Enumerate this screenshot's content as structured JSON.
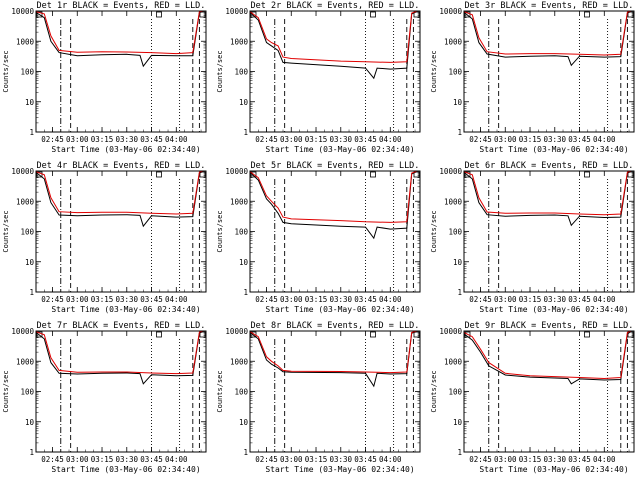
{
  "figure": {
    "common_x_label": "Start Time (03-May-06 02:34:40)",
    "common_y_label": "Counts/sec",
    "legend_text": "BLACK = Events, RED = LLD."
  },
  "chart_data": [
    {
      "type": "line",
      "title": "Det 1r BLACK = Events, RED = LLD.",
      "xlabel": "Start Time (03-May-06 02:34:40)",
      "ylabel": "Counts/sec",
      "y_scale": "log",
      "ylim": [
        1,
        10000
      ],
      "x_ticklabels": [
        "02:45",
        "03:00",
        "03:15",
        "03:30",
        "03:45",
        "04:00"
      ],
      "y_ticklabels": [
        "1",
        "10",
        "100",
        "1000",
        "10000"
      ],
      "series": [
        {
          "name": "Events",
          "color": "#000000",
          "x": [
            "02:35",
            "02:40",
            "02:44",
            "02:49",
            "03:00",
            "03:15",
            "03:30",
            "03:38",
            "03:40",
            "03:45",
            "04:00",
            "04:10",
            "04:14",
            "04:16"
          ],
          "y": [
            9000,
            6000,
            1000,
            420,
            330,
            360,
            370,
            340,
            150,
            340,
            330,
            330,
            9000,
            9500
          ]
        },
        {
          "name": "LLD",
          "color": "#e00000",
          "x": [
            "02:35",
            "02:40",
            "02:44",
            "02:49",
            "03:00",
            "03:15",
            "03:30",
            "03:45",
            "04:00",
            "04:10",
            "04:14",
            "04:16"
          ],
          "y": [
            9500,
            8000,
            1500,
            500,
            430,
            450,
            440,
            420,
            390,
            420,
            9500,
            9800
          ]
        }
      ]
    },
    {
      "type": "line",
      "title": "Det 2r BLACK = Events, RED = LLD.",
      "xlabel": "Start Time (03-May-06 02:34:40)",
      "ylabel": "Counts/sec",
      "y_scale": "log",
      "ylim": [
        1,
        10000
      ],
      "x_ticklabels": [
        "02:45",
        "03:00",
        "03:15",
        "03:30",
        "03:45",
        "04:00"
      ],
      "y_ticklabels": [
        "1",
        "10",
        "100",
        "1000",
        "10000"
      ],
      "series": [
        {
          "name": "Events",
          "color": "#000000",
          "x": [
            "02:35",
            "02:40",
            "02:45",
            "02:48",
            "02:52",
            "02:55",
            "03:00",
            "03:30",
            "03:45",
            "03:50",
            "03:52",
            "04:00",
            "04:10",
            "04:13",
            "04:16"
          ],
          "y": [
            9000,
            5000,
            900,
            700,
            500,
            200,
            190,
            150,
            130,
            60,
            130,
            120,
            130,
            8000,
            9500
          ]
        },
        {
          "name": "LLD",
          "color": "#e00000",
          "x": [
            "02:35",
            "02:40",
            "02:45",
            "02:48",
            "02:52",
            "02:55",
            "03:00",
            "03:30",
            "03:45",
            "04:00",
            "04:10",
            "04:13",
            "04:16"
          ],
          "y": [
            9500,
            6000,
            1200,
            900,
            700,
            300,
            270,
            220,
            210,
            200,
            210,
            8500,
            9800
          ]
        }
      ]
    },
    {
      "type": "line",
      "title": "Det 3r BLACK = Events, RED = LLD.",
      "xlabel": "Start Time (03-May-06 02:34:40)",
      "ylabel": "Counts/sec",
      "y_scale": "log",
      "ylim": [
        1,
        10000
      ],
      "x_ticklabels": [
        "02:45",
        "03:00",
        "03:15",
        "03:30",
        "03:45",
        "04:00"
      ],
      "y_ticklabels": [
        "1",
        "10",
        "100",
        "1000",
        "10000"
      ],
      "series": [
        {
          "name": "Events",
          "color": "#000000",
          "x": [
            "02:35",
            "02:40",
            "02:44",
            "02:49",
            "03:00",
            "03:15",
            "03:30",
            "03:38",
            "03:40",
            "03:45",
            "04:00",
            "04:10",
            "04:14",
            "04:16"
          ],
          "y": [
            9000,
            5500,
            900,
            380,
            300,
            320,
            330,
            310,
            160,
            320,
            300,
            310,
            8500,
            9500
          ]
        },
        {
          "name": "LLD",
          "color": "#e00000",
          "x": [
            "02:35",
            "02:40",
            "02:44",
            "02:49",
            "03:00",
            "03:15",
            "03:30",
            "03:45",
            "04:00",
            "04:10",
            "04:14",
            "04:16"
          ],
          "y": [
            9500,
            7500,
            1300,
            450,
            380,
            390,
            390,
            370,
            350,
            370,
            9200,
            9800
          ]
        }
      ]
    },
    {
      "type": "line",
      "title": "Det 4r BLACK = Events, RED = LLD.",
      "xlabel": "Start Time (03-May-06 02:34:40)",
      "ylabel": "Counts/sec",
      "y_scale": "log",
      "ylim": [
        1,
        10000
      ],
      "x_ticklabels": [
        "02:45",
        "03:00",
        "03:15",
        "03:30",
        "03:45",
        "04:00"
      ],
      "y_ticklabels": [
        "1",
        "10",
        "100",
        "1000",
        "10000"
      ],
      "series": [
        {
          "name": "Events",
          "color": "#000000",
          "x": [
            "02:35",
            "02:40",
            "02:44",
            "02:49",
            "03:00",
            "03:15",
            "03:30",
            "03:38",
            "03:40",
            "03:45",
            "04:00",
            "04:10",
            "04:14",
            "04:16"
          ],
          "y": [
            9000,
            5500,
            900,
            350,
            330,
            350,
            360,
            340,
            150,
            330,
            300,
            310,
            8500,
            9500
          ]
        },
        {
          "name": "LLD",
          "color": "#e00000",
          "x": [
            "02:35",
            "02:40",
            "02:44",
            "02:49",
            "03:00",
            "03:15",
            "03:30",
            "03:45",
            "04:00",
            "04:10",
            "04:14",
            "04:16"
          ],
          "y": [
            9500,
            7500,
            1300,
            450,
            420,
            430,
            430,
            400,
            380,
            400,
            9200,
            9800
          ]
        }
      ]
    },
    {
      "type": "line",
      "title": "Det 5r BLACK = Events, RED = LLD.",
      "xlabel": "Start Time (03-May-06 02:34:40)",
      "ylabel": "Counts/sec",
      "y_scale": "log",
      "ylim": [
        1,
        10000
      ],
      "x_ticklabels": [
        "02:45",
        "03:00",
        "03:15",
        "03:30",
        "03:45",
        "04:00"
      ],
      "y_ticklabels": [
        "1",
        "10",
        "100",
        "1000",
        "10000"
      ],
      "series": [
        {
          "name": "Events",
          "color": "#000000",
          "x": [
            "02:35",
            "02:40",
            "02:45",
            "02:48",
            "02:52",
            "02:55",
            "03:00",
            "03:30",
            "03:45",
            "03:50",
            "03:52",
            "04:00",
            "04:10",
            "04:13",
            "04:16"
          ],
          "y": [
            9000,
            5000,
            1200,
            800,
            400,
            200,
            180,
            150,
            140,
            60,
            140,
            120,
            130,
            8000,
            9500
          ]
        },
        {
          "name": "LLD",
          "color": "#e00000",
          "x": [
            "02:35",
            "02:40",
            "02:45",
            "02:48",
            "02:52",
            "02:55",
            "03:00",
            "03:30",
            "03:45",
            "04:00",
            "04:10",
            "04:13",
            "04:16"
          ],
          "y": [
            9500,
            6000,
            1500,
            1000,
            600,
            300,
            260,
            230,
            210,
            200,
            210,
            8500,
            9800
          ]
        }
      ]
    },
    {
      "type": "line",
      "title": "Det 6r BLACK = Events, RED = LLD.",
      "xlabel": "Start Time (03-May-06 02:34:40)",
      "ylabel": "Counts/sec",
      "y_scale": "log",
      "ylim": [
        1,
        10000
      ],
      "x_ticklabels": [
        "02:45",
        "03:00",
        "03:15",
        "03:30",
        "03:45",
        "04:00"
      ],
      "y_ticklabels": [
        "1",
        "10",
        "100",
        "1000",
        "10000"
      ],
      "series": [
        {
          "name": "Events",
          "color": "#000000",
          "x": [
            "02:35",
            "02:40",
            "02:44",
            "02:49",
            "03:00",
            "03:15",
            "03:30",
            "03:38",
            "03:40",
            "03:45",
            "04:00",
            "04:10",
            "04:14",
            "04:16"
          ],
          "y": [
            9000,
            5500,
            900,
            360,
            320,
            340,
            350,
            330,
            160,
            320,
            290,
            300,
            8500,
            9500
          ]
        },
        {
          "name": "LLD",
          "color": "#e00000",
          "x": [
            "02:35",
            "02:40",
            "02:44",
            "02:49",
            "03:00",
            "03:15",
            "03:30",
            "03:45",
            "04:00",
            "04:10",
            "04:14",
            "04:16"
          ],
          "y": [
            9500,
            7500,
            1300,
            440,
            400,
            410,
            410,
            380,
            360,
            380,
            9200,
            9800
          ]
        }
      ]
    },
    {
      "type": "line",
      "title": "Det 7r BLACK = Events, RED = LLD.",
      "xlabel": "Start Time (03-May-06 02:34:40)",
      "ylabel": "Counts/sec",
      "y_scale": "log",
      "ylim": [
        1,
        10000
      ],
      "x_ticklabels": [
        "02:45",
        "03:00",
        "03:15",
        "03:30",
        "03:45",
        "04:00"
      ],
      "y_ticklabels": [
        "1",
        "10",
        "100",
        "1000",
        "10000"
      ],
      "series": [
        {
          "name": "Events",
          "color": "#000000",
          "x": [
            "02:35",
            "02:40",
            "02:44",
            "02:49",
            "03:00",
            "03:15",
            "03:30",
            "03:38",
            "03:40",
            "03:45",
            "04:00",
            "04:10",
            "04:14",
            "04:16"
          ],
          "y": [
            9000,
            5500,
            900,
            400,
            380,
            400,
            410,
            390,
            180,
            360,
            330,
            340,
            8500,
            9500
          ]
        },
        {
          "name": "LLD",
          "color": "#e00000",
          "x": [
            "02:35",
            "02:40",
            "02:44",
            "02:49",
            "03:00",
            "03:15",
            "03:30",
            "03:45",
            "04:00",
            "04:10",
            "04:14",
            "04:16"
          ],
          "y": [
            9500,
            7500,
            1300,
            500,
            430,
            440,
            440,
            410,
            390,
            410,
            9200,
            9800
          ]
        }
      ]
    },
    {
      "type": "line",
      "title": "Det 8r BLACK = Events, RED = LLD.",
      "xlabel": "Start Time (03-May-06 02:34:40)",
      "ylabel": "Counts/sec",
      "y_scale": "log",
      "ylim": [
        1,
        10000
      ],
      "x_ticklabels": [
        "02:45",
        "03:00",
        "03:15",
        "03:30",
        "03:45",
        "04:00"
      ],
      "y_ticklabels": [
        "1",
        "10",
        "100",
        "1000",
        "10000"
      ],
      "series": [
        {
          "name": "Events",
          "color": "#000000",
          "x": [
            "02:35",
            "02:40",
            "02:45",
            "02:48",
            "02:52",
            "02:55",
            "03:00",
            "03:30",
            "03:45",
            "03:50",
            "03:52",
            "04:00",
            "04:10",
            "04:13",
            "04:16"
          ],
          "y": [
            9000,
            5500,
            1100,
            800,
            600,
            450,
            430,
            420,
            400,
            150,
            400,
            380,
            390,
            8500,
            9500
          ]
        },
        {
          "name": "LLD",
          "color": "#e00000",
          "x": [
            "02:35",
            "02:40",
            "02:45",
            "02:48",
            "02:52",
            "02:55",
            "03:00",
            "03:30",
            "03:45",
            "04:00",
            "04:10",
            "04:13",
            "04:16"
          ],
          "y": [
            9500,
            6500,
            1400,
            1000,
            700,
            500,
            470,
            460,
            440,
            420,
            440,
            9000,
            9800
          ]
        }
      ]
    },
    {
      "type": "line",
      "title": "Det 9r BLACK = Events, RED = LLD.",
      "xlabel": "Start Time (03-May-06 02:34:40)",
      "ylabel": "Counts/sec",
      "y_scale": "log",
      "ylim": [
        1,
        10000
      ],
      "x_ticklabels": [
        "02:45",
        "03:00",
        "03:15",
        "03:30",
        "03:45",
        "04:00"
      ],
      "y_ticklabels": [
        "1",
        "10",
        "100",
        "1000",
        "10000"
      ],
      "series": [
        {
          "name": "Events",
          "color": "#000000",
          "x": [
            "02:35",
            "02:40",
            "02:45",
            "02:50",
            "03:00",
            "03:15",
            "03:30",
            "03:38",
            "03:40",
            "03:45",
            "04:00",
            "04:10",
            "04:14",
            "04:16"
          ],
          "y": [
            8000,
            5000,
            2000,
            700,
            350,
            300,
            280,
            270,
            180,
            260,
            240,
            250,
            8000,
            9500
          ]
        },
        {
          "name": "LLD",
          "color": "#e00000",
          "x": [
            "02:35",
            "02:40",
            "02:45",
            "02:50",
            "03:00",
            "03:15",
            "03:30",
            "03:45",
            "04:00",
            "04:10",
            "04:14",
            "04:16"
          ],
          "y": [
            9000,
            6500,
            2500,
            900,
            400,
            330,
            310,
            290,
            270,
            290,
            9000,
            9800
          ]
        }
      ]
    }
  ]
}
